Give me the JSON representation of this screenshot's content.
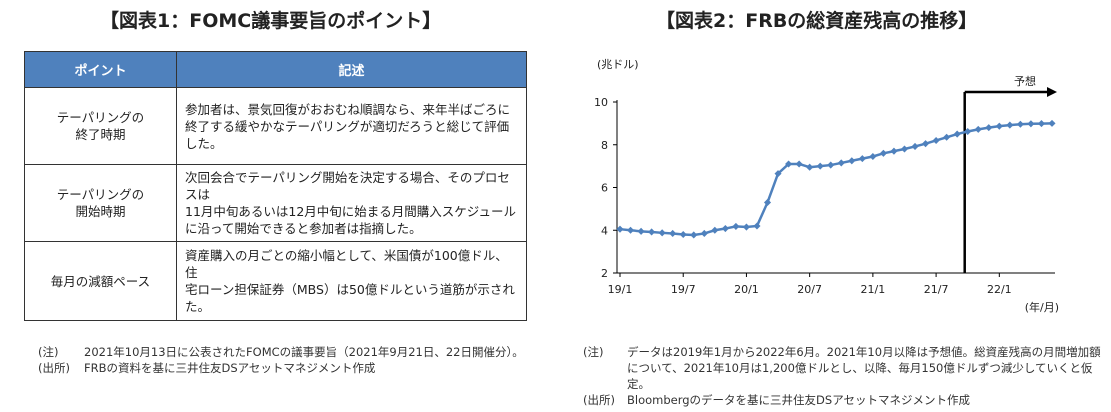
{
  "left": {
    "title": "【図表1：FOMC議事要旨のポイント】",
    "table": {
      "headers": [
        "ポイント",
        "記述"
      ],
      "rows": [
        {
          "item": [
            "テーパリングの",
            "終了時期"
          ],
          "desc": [
            "参加者は、景気回復がおおむね順調なら、来年半ばごろに",
            "終了する緩やかなテーパリングが適切だろうと総じて評価した。"
          ]
        },
        {
          "item": [
            "テーパリングの",
            "開始時期"
          ],
          "desc": [
            "次回会合でテーパリング開始を決定する場合、そのプロセスは",
            "11月中旬あるいは12月中旬に始まる月間購入スケジュール",
            "に沿って開始できると参加者は指摘した。"
          ]
        },
        {
          "item": [
            "毎月の減額ペース"
          ],
          "desc": [
            "資産購入の月ごとの縮小幅として、米国債が100億ドル、住",
            "宅ローン担保証券（MBS）は50億ドルという道筋が示され",
            "た。"
          ]
        }
      ]
    },
    "notes": [
      {
        "label": "(注)",
        "text": "2021年10月13日に公表されたFOMCの議事要旨（2021年9月21日、22日開催分）。"
      },
      {
        "label": "(出所)",
        "text": "FRBの資料を基に三井住友DSアセットマネジメント作成"
      }
    ]
  },
  "right": {
    "title": "【図表2：FRBの総資産残高の推移】",
    "notes": [
      {
        "label": "(注)",
        "text": "データは2019年1月から2022年6月。2021年10月以降は予想値。総資産残高の月間増加額について、2021年10月は1,200億ドルとし、以降、毎月150億ドルずつ減少していくと仮定。"
      },
      {
        "label": "(出所)",
        "text": "Bloombergのデータを基に三井住友DSアセットマネジメント作成"
      }
    ]
  },
  "chart_data": {
    "type": "line",
    "ylabel": "(兆ドル)",
    "xlabel": "(年/月)",
    "ylim": [
      2,
      10
    ],
    "yticks": [
      2,
      4,
      6,
      8,
      10
    ],
    "xticks": [
      "19/1",
      "19/7",
      "20/1",
      "20/7",
      "21/1",
      "21/7",
      "22/1"
    ],
    "forecast_label": "予想",
    "forecast_start": "2021-10",
    "color": "#4f81bd",
    "series": [
      {
        "x": [
          "2019-01",
          "2019-02",
          "2019-03",
          "2019-04",
          "2019-05",
          "2019-06",
          "2019-07",
          "2019-08",
          "2019-09",
          "2019-10",
          "2019-11",
          "2019-12",
          "2020-01",
          "2020-02",
          "2020-03",
          "2020-04",
          "2020-05",
          "2020-06",
          "2020-07",
          "2020-08",
          "2020-09",
          "2020-10",
          "2020-11",
          "2020-12",
          "2021-01",
          "2021-02",
          "2021-03",
          "2021-04",
          "2021-05",
          "2021-06",
          "2021-07",
          "2021-08",
          "2021-09",
          "2021-10",
          "2021-11",
          "2021-12",
          "2022-01",
          "2022-02",
          "2022-03",
          "2022-04",
          "2022-05",
          "2022-06"
        ],
        "values": [
          4.05,
          4.0,
          3.95,
          3.92,
          3.88,
          3.85,
          3.8,
          3.78,
          3.85,
          4.0,
          4.08,
          4.18,
          4.15,
          4.2,
          5.3,
          6.65,
          7.1,
          7.1,
          6.95,
          7.0,
          7.05,
          7.15,
          7.25,
          7.35,
          7.45,
          7.6,
          7.7,
          7.8,
          7.92,
          8.05,
          8.2,
          8.35,
          8.5,
          8.62,
          8.72,
          8.8,
          8.87,
          8.92,
          8.96,
          8.98,
          8.99,
          9.0
        ]
      }
    ]
  }
}
